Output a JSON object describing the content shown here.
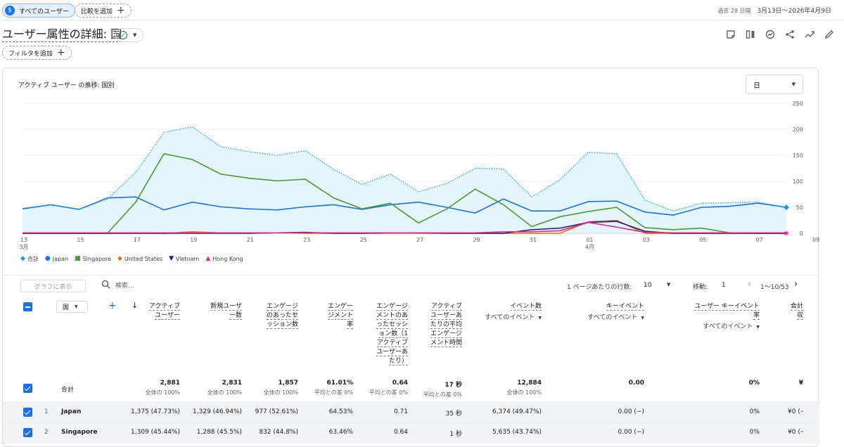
{
  "topbar": {
    "segment_chip": "すべてのユーザー",
    "compare_chip": "比較を追加",
    "date_prefix": "過去 28 日間",
    "date_range": "3月13日〜2026年4月9日"
  },
  "page": {
    "title": "ユーザー属性の詳細: 国",
    "filter_chip": "フィルタを追加"
  },
  "chart": {
    "title": "アクティブ ユーザー の推移: 国別",
    "granularity": "日",
    "x_labels": [
      "13\n3月",
      "15",
      "17",
      "19",
      "21",
      "23",
      "25",
      "27",
      "29",
      "31",
      "01\n4月",
      "03",
      "05",
      "07",
      "09"
    ],
    "x_label_main": [
      "13",
      "15",
      "17",
      "19",
      "21",
      "23",
      "25",
      "27",
      "29",
      "31",
      "01",
      "03",
      "05",
      "07",
      "09"
    ],
    "x_label_sub": [
      "3月",
      "",
      "",
      "",
      "",
      "",
      "",
      "",
      "",
      "",
      "4月",
      "",
      "",
      "",
      ""
    ],
    "y_ticks": [
      "250",
      "200",
      "150",
      "100",
      "50",
      "0"
    ]
  },
  "chart_data": {
    "type": "line",
    "title": "アクティブ ユーザー の推移: 国別",
    "x": [
      "3/13",
      "3/14",
      "3/15",
      "3/16",
      "3/17",
      "3/18",
      "3/19",
      "3/20",
      "3/21",
      "3/22",
      "3/23",
      "3/24",
      "3/25",
      "3/26",
      "3/27",
      "3/28",
      "3/29",
      "3/30",
      "3/31",
      "4/1",
      "4/2",
      "4/3",
      "4/4",
      "4/5",
      "4/6",
      "4/7",
      "4/8",
      "4/9"
    ],
    "ylim": [
      0,
      250
    ],
    "grid": true,
    "legend_position": "bottom-left",
    "series": [
      {
        "name": "合計",
        "color": "#12a4d9",
        "values": [
          48,
          55,
          46,
          66,
          117,
          194,
          205,
          167,
          157,
          150,
          159,
          123,
          94,
          114,
          80,
          96,
          125,
          124,
          70,
          103,
          156,
          153,
          64,
          43,
          58,
          59,
          60,
          50
        ]
      },
      {
        "name": "Japan",
        "color": "#1a73e8",
        "values": [
          47,
          55,
          46,
          68,
          70,
          45,
          60,
          51,
          47,
          45,
          51,
          55,
          46,
          55,
          60,
          50,
          39,
          66,
          43,
          43,
          61,
          62,
          41,
          35,
          50,
          52,
          58,
          50
        ]
      },
      {
        "name": "Singapore",
        "color": "#4e9a2f",
        "values": [
          0,
          0,
          0,
          0,
          60,
          153,
          142,
          114,
          106,
          101,
          104,
          68,
          47,
          58,
          20,
          47,
          85,
          55,
          13,
          32,
          42,
          50,
          11,
          7,
          10,
          1,
          0,
          0
        ]
      },
      {
        "name": "United States",
        "color": "#e8710a",
        "values": [
          0,
          0,
          0,
          0,
          0,
          0,
          3,
          1,
          0,
          1,
          0,
          0,
          0,
          0,
          0,
          0,
          0,
          0,
          0,
          0,
          22,
          25,
          0,
          0,
          0,
          0,
          0,
          0
        ]
      },
      {
        "name": "Vietnam",
        "color": "#1a237e",
        "values": [
          0,
          0,
          0,
          0,
          0,
          0,
          0,
          0,
          0,
          1,
          2,
          0,
          0,
          1,
          1,
          0,
          0,
          0,
          7,
          10,
          21,
          23,
          4,
          0,
          0,
          0,
          0,
          0
        ]
      },
      {
        "name": "Hong Kong",
        "color": "#e52592",
        "values": [
          1,
          1,
          1,
          1,
          1,
          1,
          1,
          1,
          1,
          1,
          1,
          1,
          1,
          1,
          1,
          1,
          1,
          3,
          3,
          5,
          21,
          12,
          2,
          1,
          1,
          1,
          1,
          1
        ]
      }
    ]
  },
  "table": {
    "graph_button": "グラフに表示",
    "search_placeholder": "検索...",
    "rows_per_page_label": "1 ページあたりの行数:",
    "rows_per_page": "10",
    "move_label": "移動:",
    "move_value": "1",
    "pagination": "1〜10/53",
    "dimension": "国",
    "columns": [
      {
        "label": "アクティブ\nユーザー",
        "lines": [
          "アクティブ",
          "ユーザー"
        ]
      },
      {
        "label": "新規ユーザー数",
        "lines": [
          "新規ユーザ",
          "ー数"
        ]
      },
      {
        "label": "エンゲージのあったセッション数",
        "lines": [
          "エンゲージ",
          "のあったセ",
          "ッション数"
        ]
      },
      {
        "label": "エンゲージメント率",
        "lines": [
          "エンゲー",
          "ジメント",
          "率"
        ]
      },
      {
        "label": "エンゲージメントのあったセッション数（1 アクティブ ユーザーあたり）",
        "lines": [
          "エンゲージ",
          "メントのあ",
          "ったセッシ",
          "ョン数（1",
          "アクティブ",
          "ユーザーあ",
          "たり）"
        ]
      },
      {
        "label": "アクティブユーザーあたりの平均エンゲージメント時間",
        "lines": [
          "アクティブ",
          "ユーザーあ",
          "たりの平均",
          "エンゲージ",
          "メント時間"
        ]
      },
      {
        "label": "イベント数",
        "lines": [
          "イベント数"
        ],
        "sub": "すべてのイベント"
      },
      {
        "label": "キーイベント",
        "lines": [
          "キーイベント"
        ],
        "sub": "すべてのイベント"
      },
      {
        "label": "ユーザー キーイベント率",
        "lines": [
          "ユーザー キーイベント",
          "率"
        ],
        "sub": "すべてのイベント"
      },
      {
        "label": "合計収益",
        "lines": [
          "合計収"
        ]
      }
    ],
    "total_row": {
      "label": "合計",
      "cells": [
        {
          "v": "2,881",
          "s": "全体の 100%"
        },
        {
          "v": "2,831",
          "s": "全体の 100%"
        },
        {
          "v": "1,857",
          "s": "全体の 100%"
        },
        {
          "v": "61.01%",
          "s": "平均との差 0%"
        },
        {
          "v": "0.64",
          "s": "平均との差 0%"
        },
        {
          "v": "17 秒",
          "s": "平均との差 0%"
        },
        {
          "v": "12,884",
          "s": "全体の 100%"
        },
        {
          "v": "0.00",
          "s": ""
        },
        {
          "v": "0%",
          "s": ""
        },
        {
          "v": "¥",
          "s": ""
        }
      ]
    },
    "rows": [
      {
        "num": "1",
        "label": "Japan",
        "cells": [
          "1,375 (47.73%)",
          "1,329 (46.94%)",
          "977 (52.61%)",
          "64.53%",
          "0.71",
          "35 秒",
          "6,374 (49.47%)",
          "0.00 (−)",
          "0%",
          "¥0 (−"
        ]
      },
      {
        "num": "2",
        "label": "Singapore",
        "cells": [
          "1,309 (45.44%)",
          "1,288 (45.5%)",
          "832 (44.8%)",
          "63.46%",
          "0.64",
          "1 秒",
          "5,635 (43.74%)",
          "0.00 (−)",
          "0%",
          "¥0 (−"
        ]
      }
    ]
  }
}
